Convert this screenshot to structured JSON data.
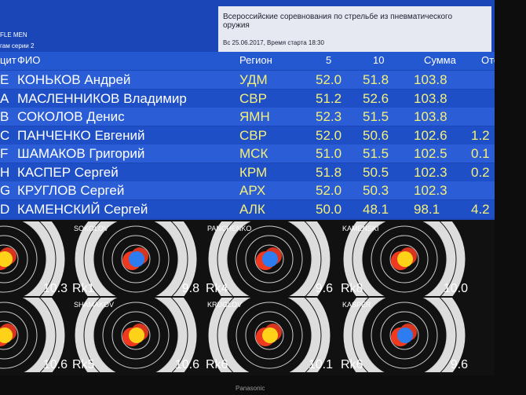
{
  "header": {
    "left_lines": [
      "FLE MEN",
      "гам серии 2"
    ],
    "title": "Всероссийские соревнования по стрельбе из пневматического оружия",
    "subtitle": "Вс 25.06.2017, Время старта 18:30"
  },
  "table": {
    "columns": [
      "цит",
      "ФИО",
      "Регион",
      "5",
      "10",
      "Сумма",
      "Отст."
    ],
    "rows": [
      {
        "code": "E",
        "name": "КОНЬКОВ Андрей",
        "region": "УДМ",
        "s5": "52.0",
        "s10": "51.8",
        "total": "103.8"
      },
      {
        "code": "A",
        "name": "МАСЛЕННИКОВ Владимир",
        "region": "СВР",
        "s5": "51.2",
        "s10": "52.6",
        "total": "103.8"
      },
      {
        "code": "B",
        "name": "СОКОЛОВ Денис",
        "region": "ЯМН",
        "s5": "52.3",
        "s10": "51.5",
        "total": "103.8"
      },
      {
        "code": "C",
        "name": "ПАНЧЕНКО Евгений",
        "region": "СВР",
        "s5": "52.0",
        "s10": "50.6",
        "total": "102.6",
        "gap": "1.2"
      },
      {
        "code": "F",
        "name": "ШАМАКОВ Григорий",
        "region": "МСК",
        "s5": "51.0",
        "s10": "51.5",
        "total": "102.5",
        "gap": "0.1"
      },
      {
        "code": "H",
        "name": "КАСПЕР Сергей",
        "region": "КРМ",
        "s5": "51.8",
        "s10": "50.5",
        "total": "102.3",
        "gap": "0.2"
      },
      {
        "code": "G",
        "name": "КРУГЛОВ Сергей",
        "region": "АРХ",
        "s5": "52.0",
        "s10": "50.3",
        "total": "102.3"
      },
      {
        "code": "D",
        "name": "КАМЕНСКИЙ Сергей",
        "region": "АЛК",
        "s5": "50.0",
        "s10": "48.1",
        "total": "98.1",
        "gap": "4.2"
      }
    ]
  },
  "targets": [
    {
      "score": "10.3"
    },
    {
      "name": "SOKOLOV",
      "score": "9.8",
      "rank": "Rk1"
    },
    {
      "name": "PANCHENKO",
      "score": "9.6",
      "rank": "Rk4"
    },
    {
      "name": "KAMENSKI",
      "score": "10.0",
      "rank": "Rk8"
    },
    {
      "score": "10.6"
    },
    {
      "name": "SHAMAKOV",
      "score": "10.6",
      "rank": "Rk5"
    },
    {
      "name": "KRUGLOV",
      "score": "10.1",
      "rank": "Rk6"
    },
    {
      "name": "KASPER",
      "score": "9.6",
      "rank": "Rk6"
    }
  ],
  "brand": "Panasonic"
}
